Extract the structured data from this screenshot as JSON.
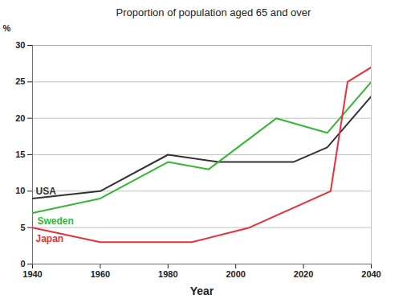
{
  "chart_data": {
    "type": "line",
    "title": "Proportion of population aged 65 and over",
    "x_label": "Year",
    "y_label": "%",
    "xlim": [
      1940,
      2040
    ],
    "xticks": [
      1940,
      1960,
      1980,
      2000,
      2020,
      2040
    ],
    "ylim": [
      0,
      30
    ],
    "yticks": [
      0,
      5,
      10,
      15,
      20,
      25,
      30
    ],
    "grid": true,
    "series": [
      {
        "name": "USA",
        "color": "#333333",
        "x": [
          1940,
          1960,
          1980,
          1995,
          2017,
          2027,
          2040
        ],
        "values": [
          9,
          10,
          15,
          14,
          14,
          16,
          23
        ]
      },
      {
        "name": "Sweden",
        "color": "#33b833",
        "x": [
          1940,
          1960,
          1980,
          1992,
          2012,
          2027,
          2040
        ],
        "values": [
          7,
          9,
          14,
          13,
          20,
          18,
          25
        ]
      },
      {
        "name": "Japan",
        "color": "#e8303a",
        "x": [
          1940,
          1960,
          1987,
          2004,
          2028,
          2033,
          2040
        ],
        "values": [
          5,
          3,
          3,
          5,
          10,
          25,
          27
        ]
      }
    ]
  }
}
